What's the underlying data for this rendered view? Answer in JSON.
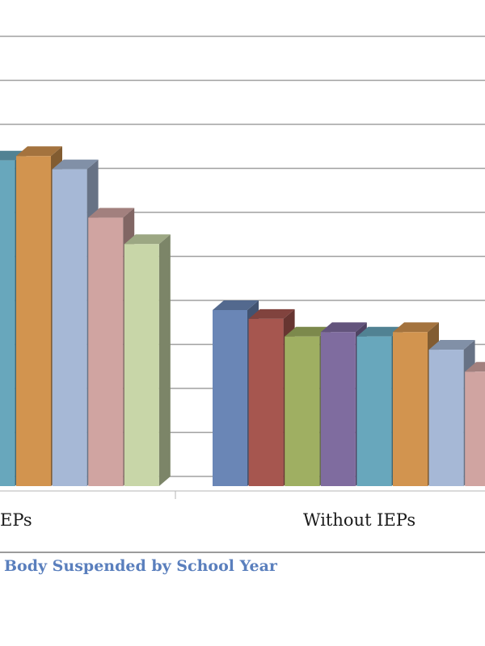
{
  "chart_data": {
    "type": "bar",
    "style": "3d-clustered-column",
    "categories": [
      "With IEPs",
      "Without IEPs"
    ],
    "visible_category_labels": [
      "EPs",
      "Without IEPs"
    ],
    "ylim": [
      0,
      100
    ],
    "grid": true,
    "legend": "none visible",
    "series": [
      {
        "color": "#6a86b6",
        "values": [
          null,
          40
        ]
      },
      {
        "color": "#a6564f",
        "values": [
          null,
          38
        ]
      },
      {
        "color": "#9faf62",
        "values": [
          null,
          34
        ]
      },
      {
        "color": "#7f6c9f",
        "values": [
          null,
          35
        ]
      },
      {
        "color": "#68a7bc",
        "values": [
          74,
          34
        ]
      },
      {
        "color": "#d2944f",
        "values": [
          75,
          35
        ]
      },
      {
        "color": "#a6b8d6",
        "values": [
          72,
          31
        ]
      },
      {
        "color": "#d0a4a1",
        "values": [
          61,
          26
        ]
      },
      {
        "color": "#c8d6a8",
        "values": [
          55,
          null
        ]
      }
    ],
    "caption": "Body Suspended by School Year"
  }
}
